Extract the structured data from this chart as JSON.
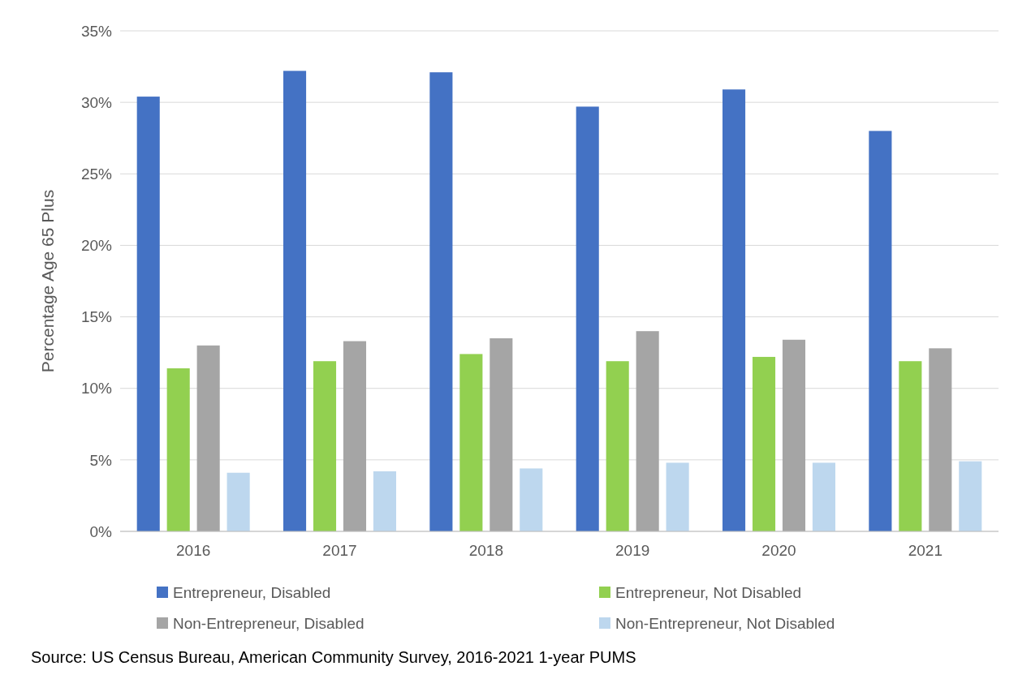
{
  "chart_data": {
    "type": "bar",
    "ylabel": "Percentage Age 65 Plus",
    "categories": [
      "2016",
      "2017",
      "2018",
      "2019",
      "2020",
      "2021"
    ],
    "series": [
      {
        "name": "Entrepreneur, Disabled",
        "color": "#4472c4",
        "values": [
          30.4,
          32.2,
          32.1,
          29.7,
          30.9,
          28.0
        ]
      },
      {
        "name": "Entrepreneur, Not Disabled",
        "color": "#92d050",
        "values": [
          11.4,
          11.9,
          12.4,
          11.9,
          12.2,
          11.9
        ]
      },
      {
        "name": "Non-Entrepreneur, Disabled",
        "color": "#a5a5a5",
        "values": [
          13.0,
          13.3,
          13.5,
          14.0,
          13.4,
          12.8
        ]
      },
      {
        "name": "Non-Entrepreneur, Not Disabled",
        "color": "#bdd7ee",
        "values": [
          4.1,
          4.2,
          4.4,
          4.8,
          4.8,
          4.9
        ]
      }
    ],
    "ylim": [
      0,
      35
    ],
    "yticks": [
      {
        "value": 0,
        "label": "0%"
      },
      {
        "value": 5,
        "label": "5%"
      },
      {
        "value": 10,
        "label": "10%"
      },
      {
        "value": 15,
        "label": "15%"
      },
      {
        "value": 20,
        "label": "20%"
      },
      {
        "value": 25,
        "label": "25%"
      },
      {
        "value": 30,
        "label": "30%"
      },
      {
        "value": 35,
        "label": "35%"
      }
    ],
    "grid": "y",
    "legend": "bottom",
    "annotations": [
      "Source: US Census Bureau, American Community Survey, 2016-2021 1-year PUMS"
    ]
  }
}
